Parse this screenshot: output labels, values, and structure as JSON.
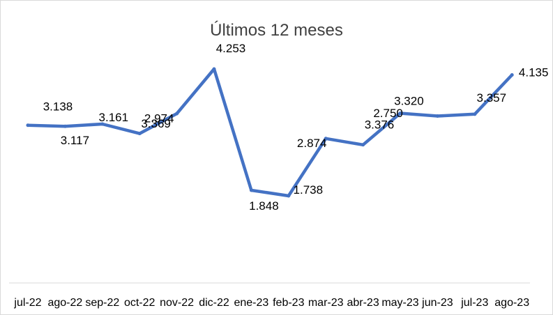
{
  "chart_data": {
    "type": "line",
    "title": "Últimos 12 meses",
    "xlabel": "",
    "ylabel": "",
    "categories": [
      "jul-22",
      "ago-22",
      "sep-22",
      "oct-22",
      "nov-22",
      "dic-22",
      "ene-23",
      "feb-23",
      "mar-23",
      "abr-23",
      "may-23",
      "jun-23",
      "jul-23",
      "ago-23"
    ],
    "values": [
      3.138,
      3.117,
      3.161,
      2.974,
      3.369,
      4.253,
      1.848,
      1.738,
      2.874,
      2.75,
      3.376,
      3.32,
      3.357,
      4.135
    ],
    "data_labels": [
      "3.138",
      "3.117",
      "3.161",
      "2.974",
      "3.369",
      "4.253",
      "1.848",
      "1.738",
      "2.874",
      "2.750",
      "3.376",
      "3.320",
      "3.357",
      "4.135"
    ],
    "series_color": "#4472c4",
    "grid": false,
    "legend": "none"
  }
}
